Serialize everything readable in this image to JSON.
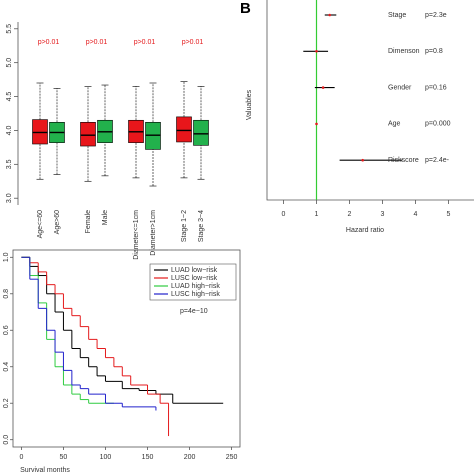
{
  "chart_data": [
    {
      "type": "box",
      "categories": [
        "Age<=60",
        "Age>60",
        "Female",
        "Male",
        "Diameter<=1cm",
        "Diameter>1cm",
        "Stage 1~2",
        "Stage 3~4"
      ],
      "colors": [
        "#e8161b",
        "#22b14c",
        "#e8161b",
        "#22b14c",
        "#e8161b",
        "#22b14c",
        "#e8161b",
        "#22b14c"
      ],
      "min": [
        3.28,
        3.35,
        3.25,
        3.33,
        3.3,
        3.18,
        3.3,
        3.28
      ],
      "q1": [
        3.8,
        3.82,
        3.77,
        3.82,
        3.82,
        3.72,
        3.83,
        3.78
      ],
      "median": [
        3.97,
        3.97,
        3.93,
        3.98,
        3.98,
        3.93,
        4.0,
        3.95
      ],
      "q3": [
        4.16,
        4.12,
        4.12,
        4.15,
        4.15,
        4.12,
        4.2,
        4.15
      ],
      "max": [
        4.7,
        4.62,
        4.65,
        4.67,
        4.65,
        4.7,
        4.72,
        4.65
      ],
      "annotations": [
        "p>0.01",
        "p>0.01",
        "p>0.01",
        "p>0.01"
      ],
      "ylim": [
        2.9,
        5.6
      ],
      "yticks": [
        {
          "value": 3,
          "label": "3.0"
        },
        3.5,
        {
          "value": 4,
          "label": "4.0"
        },
        4.5,
        {
          "value": 5,
          "label": "5.0"
        },
        5.5
      ]
    },
    {
      "type": "forest",
      "panel_label": "B",
      "categories": [
        "Stage",
        "Dimenson",
        "Gender",
        "Age",
        "Riskscore"
      ],
      "values": [
        1.4,
        1.0,
        1.2,
        1.0,
        2.4
      ],
      "lower": [
        1.25,
        0.6,
        0.95,
        0.98,
        1.7
      ],
      "upper": [
        1.6,
        1.35,
        1.55,
        1.03,
        3.6
      ],
      "p_labels": [
        "p=2.3e",
        "p=0.8",
        "p=0.16",
        "p=0.000",
        "p=2.4e-"
      ],
      "xlabel": "Hazard ratio",
      "ylabel": "Valuables",
      "xlim": [
        -0.5,
        5.5
      ],
      "xticks": [
        0,
        1,
        2,
        3,
        4,
        5
      ],
      "ref_line": 1,
      "ref_color": "#33cc33",
      "color": "#e41a1c"
    },
    {
      "type": "km",
      "xlabel": "Survival months",
      "annotation": "p=4e−10",
      "legend": "top-right",
      "xlim": [
        -10,
        260
      ],
      "ylim": [
        -0.04,
        1.04
      ],
      "xticks": [
        0,
        50,
        100,
        150,
        200,
        250
      ],
      "yticks": [
        {
          "value": 0,
          "label": "0.0"
        },
        0.2,
        0.4,
        0.6,
        0.8,
        {
          "value": 1,
          "label": "1.0"
        }
      ],
      "series": [
        {
          "name": "LUAD low−risk",
          "color": "#000000",
          "x": [
            0,
            10,
            20,
            30,
            40,
            50,
            60,
            70,
            80,
            90,
            100,
            120,
            140,
            160,
            180,
            240
          ],
          "values": [
            1,
            0.95,
            0.9,
            0.8,
            0.7,
            0.6,
            0.5,
            0.45,
            0.4,
            0.35,
            0.32,
            0.28,
            0.27,
            0.25,
            0.2,
            0.2
          ]
        },
        {
          "name": "LUSC low−risk",
          "color": "#e41a1c",
          "x": [
            0,
            10,
            20,
            30,
            40,
            50,
            60,
            70,
            80,
            90,
            100,
            110,
            120,
            130,
            150,
            165,
            175
          ],
          "values": [
            1,
            0.97,
            0.92,
            0.85,
            0.8,
            0.72,
            0.68,
            0.62,
            0.55,
            0.5,
            0.45,
            0.4,
            0.35,
            0.3,
            0.25,
            0.2,
            0.02
          ]
        },
        {
          "name": "LUAD high−risk",
          "color": "#2ecc40",
          "x": [
            0,
            10,
            20,
            30,
            40,
            50,
            60,
            70,
            80,
            110
          ],
          "values": [
            1,
            0.9,
            0.75,
            0.55,
            0.4,
            0.3,
            0.25,
            0.22,
            0.2,
            0.2
          ]
        },
        {
          "name": "LUSC high−risk",
          "color": "#2222cc",
          "x": [
            0,
            10,
            20,
            30,
            40,
            50,
            60,
            70,
            80,
            100,
            120,
            160
          ],
          "values": [
            1,
            0.88,
            0.72,
            0.6,
            0.48,
            0.38,
            0.3,
            0.28,
            0.25,
            0.2,
            0.18,
            0.16
          ]
        }
      ]
    }
  ]
}
